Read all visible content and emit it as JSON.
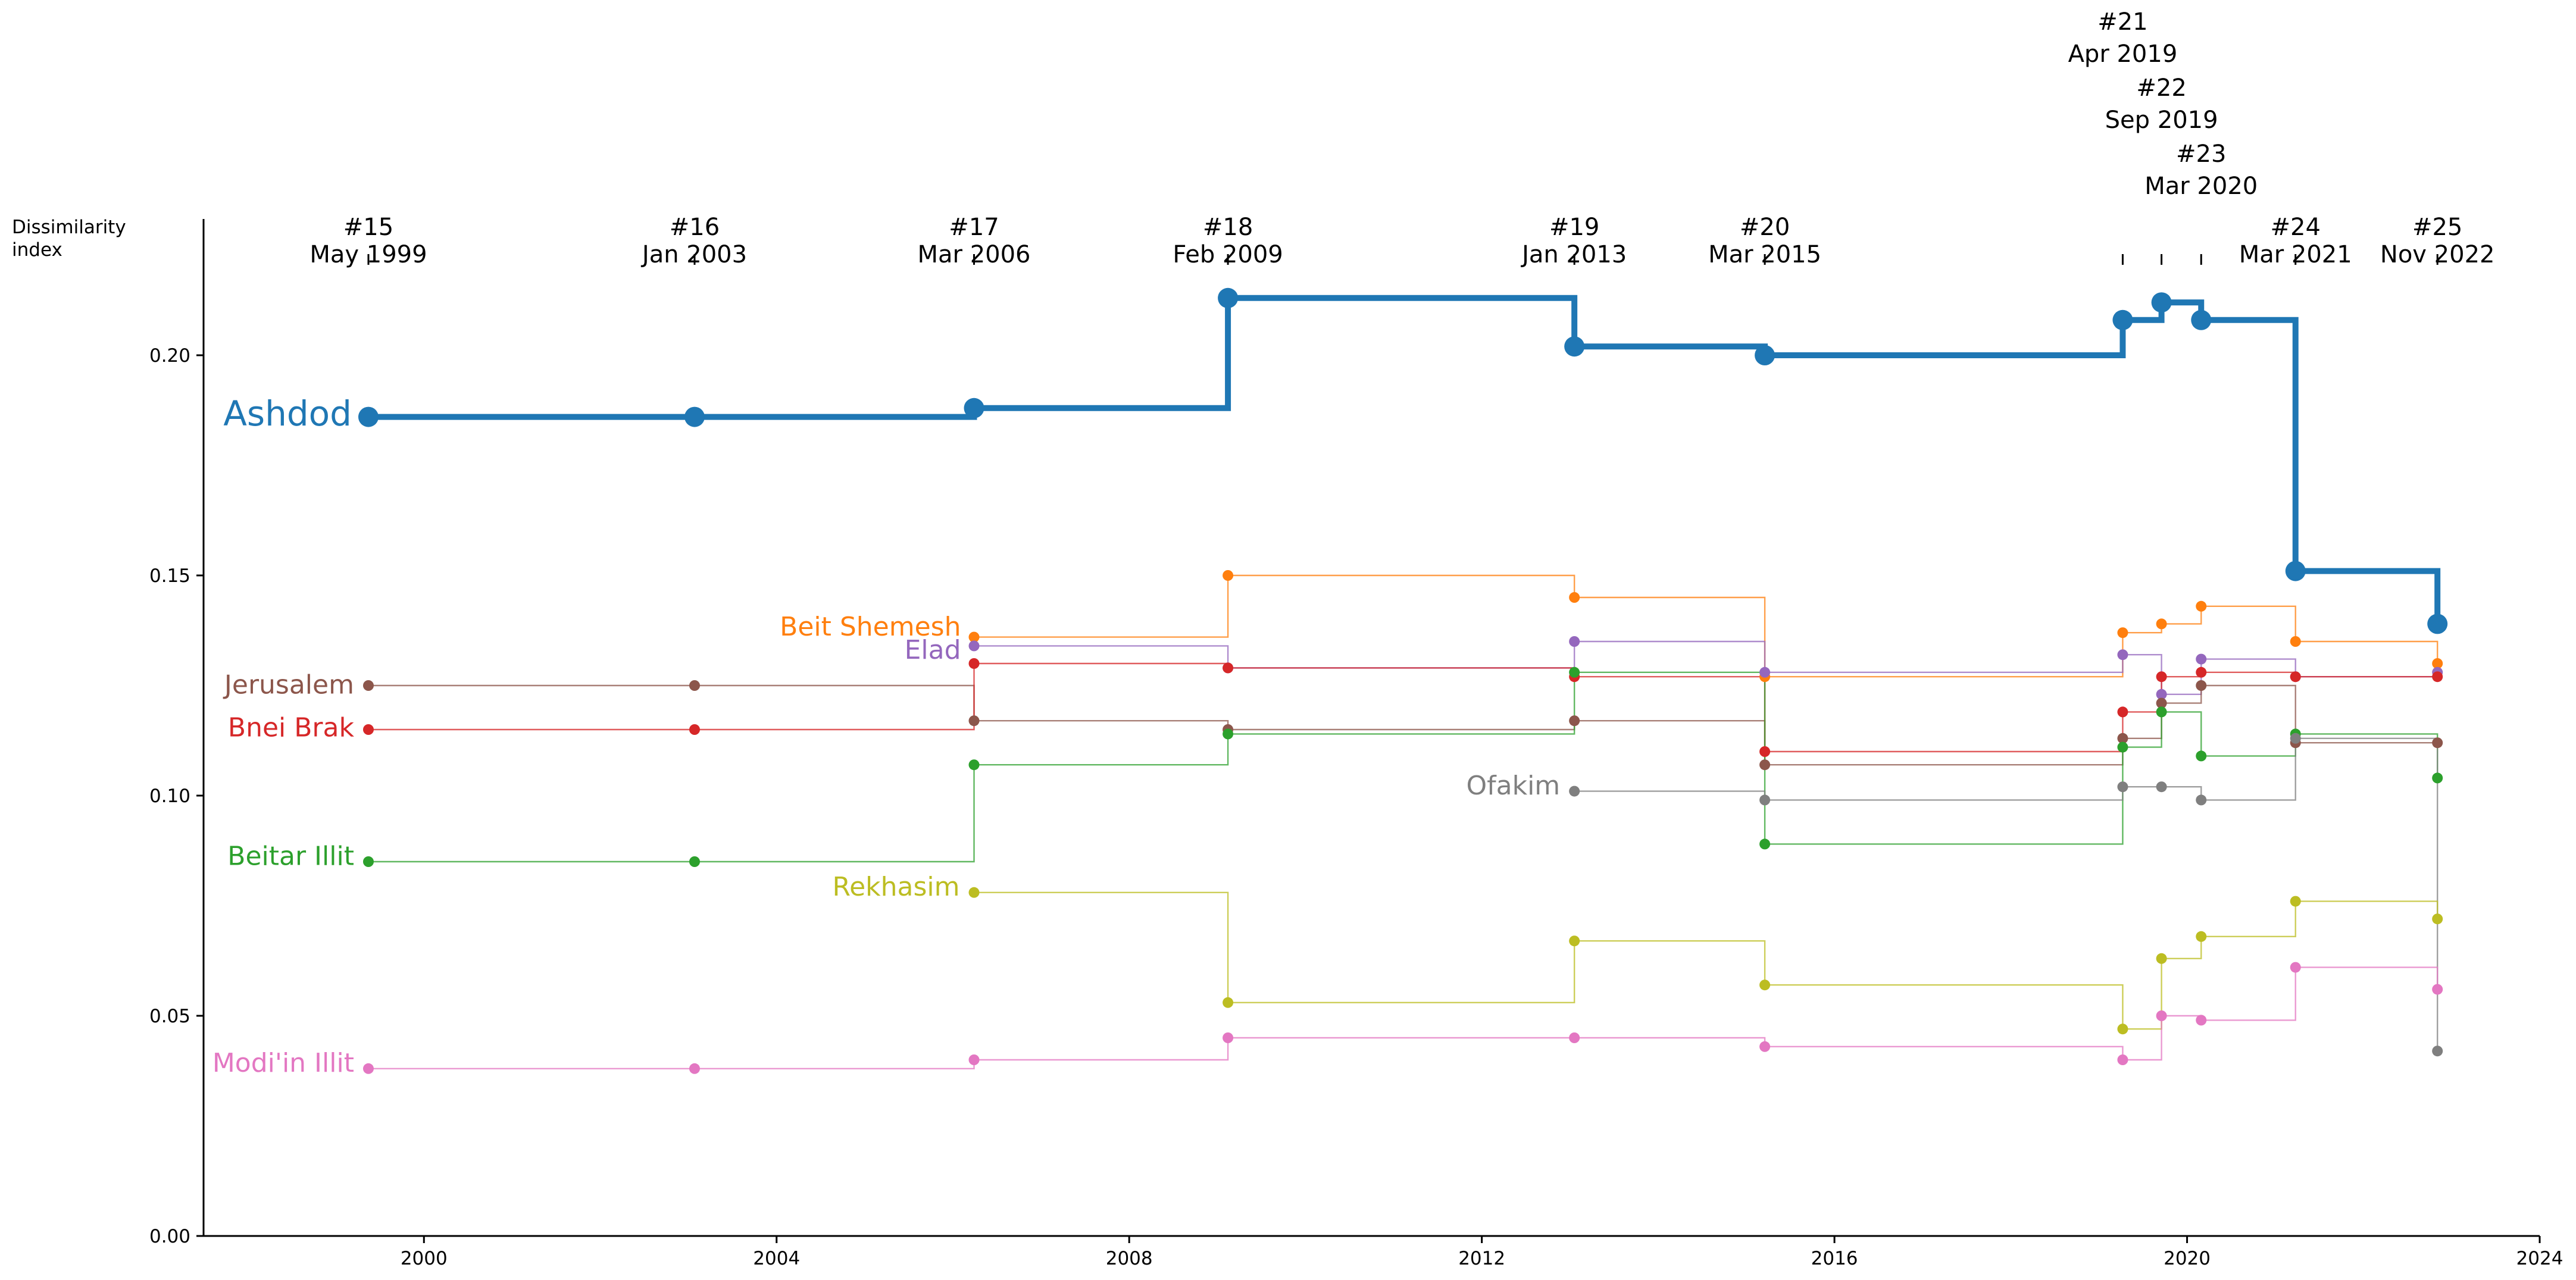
{
  "chart_data": {
    "type": "line",
    "subtype": "step",
    "ylabel_lines": [
      "Dissimilarity",
      "index"
    ],
    "xlim": [
      1997.5,
      2024
    ],
    "ylim": [
      0.0,
      0.23
    ],
    "xticks": [
      2000,
      2004,
      2008,
      2012,
      2016,
      2020,
      2024
    ],
    "xtick_labels": [
      "2000",
      "2004",
      "2008",
      "2012",
      "2016",
      "2020",
      "2024"
    ],
    "yticks": [
      0.0,
      0.05,
      0.1,
      0.15,
      0.2
    ],
    "ytick_labels": [
      "0.00",
      "0.05",
      "0.10",
      "0.15",
      "0.20"
    ],
    "elections": [
      {
        "number": "#15",
        "date": "May 1999",
        "x": 1999.37
      },
      {
        "number": "#16",
        "date": "Jan 2003",
        "x": 2003.07
      },
      {
        "number": "#17",
        "date": "Mar 2006",
        "x": 2006.24
      },
      {
        "number": "#18",
        "date": "Feb 2009",
        "x": 2009.12
      },
      {
        "number": "#19",
        "date": "Jan 2013",
        "x": 2013.05
      },
      {
        "number": "#20",
        "date": "Mar 2015",
        "x": 2015.21
      },
      {
        "number": "#21",
        "date": "Apr 2019",
        "x": 2019.27
      },
      {
        "number": "#22",
        "date": "Sep 2019",
        "x": 2019.71
      },
      {
        "number": "#23",
        "date": "Mar 2020",
        "x": 2020.16
      },
      {
        "number": "#24",
        "date": "Mar 2021",
        "x": 2021.23
      },
      {
        "number": "#25",
        "date": "Nov 2022",
        "x": 2022.84
      }
    ],
    "series": [
      {
        "name": "Ashdod",
        "color": "#1f77b4",
        "highlight": true,
        "points": [
          [
            1999.37,
            0.186
          ],
          [
            2003.07,
            0.186
          ],
          [
            2006.24,
            0.188
          ],
          [
            2009.12,
            0.213
          ],
          [
            2013.05,
            0.202
          ],
          [
            2015.21,
            0.2
          ],
          [
            2019.27,
            0.208
          ],
          [
            2019.71,
            0.212
          ],
          [
            2020.16,
            0.208
          ],
          [
            2021.23,
            0.151
          ],
          [
            2022.84,
            0.139
          ]
        ]
      },
      {
        "name": "Beit Shemesh",
        "color": "#ff7f0e",
        "points": [
          [
            2006.24,
            0.136
          ],
          [
            2009.12,
            0.15
          ],
          [
            2013.05,
            0.145
          ],
          [
            2015.21,
            0.127
          ],
          [
            2019.27,
            0.137
          ],
          [
            2019.71,
            0.139
          ],
          [
            2020.16,
            0.143
          ],
          [
            2021.23,
            0.135
          ],
          [
            2022.84,
            0.13
          ]
        ]
      },
      {
        "name": "Elad",
        "color": "#9467bd",
        "points": [
          [
            2006.24,
            0.134
          ],
          [
            2009.12,
            0.129
          ],
          [
            2013.05,
            0.135
          ],
          [
            2015.21,
            0.128
          ],
          [
            2019.27,
            0.132
          ],
          [
            2019.71,
            0.123
          ],
          [
            2020.16,
            0.131
          ],
          [
            2021.23,
            0.127
          ],
          [
            2022.84,
            0.128
          ]
        ]
      },
      {
        "name": "Jerusalem",
        "color": "#8c564b",
        "points": [
          [
            1999.37,
            0.125
          ],
          [
            2003.07,
            0.125
          ],
          [
            2006.24,
            0.117
          ],
          [
            2009.12,
            0.115
          ],
          [
            2013.05,
            0.117
          ],
          [
            2015.21,
            0.107
          ],
          [
            2019.27,
            0.113
          ],
          [
            2019.71,
            0.121
          ],
          [
            2020.16,
            0.125
          ],
          [
            2021.23,
            0.112
          ],
          [
            2022.84,
            0.112
          ]
        ]
      },
      {
        "name": "Bnei Brak",
        "color": "#d62728",
        "points": [
          [
            1999.37,
            0.115
          ],
          [
            2003.07,
            0.115
          ],
          [
            2006.24,
            0.13
          ],
          [
            2009.12,
            0.129
          ],
          [
            2013.05,
            0.127
          ],
          [
            2015.21,
            0.11
          ],
          [
            2019.27,
            0.119
          ],
          [
            2019.71,
            0.127
          ],
          [
            2020.16,
            0.128
          ],
          [
            2021.23,
            0.127
          ],
          [
            2022.84,
            0.127
          ]
        ]
      },
      {
        "name": "Beitar Illit",
        "color": "#2ca02c",
        "points": [
          [
            1999.37,
            0.085
          ],
          [
            2003.07,
            0.085
          ],
          [
            2006.24,
            0.107
          ],
          [
            2009.12,
            0.114
          ],
          [
            2013.05,
            0.128
          ],
          [
            2015.21,
            0.089
          ],
          [
            2019.27,
            0.111
          ],
          [
            2019.71,
            0.119
          ],
          [
            2020.16,
            0.109
          ],
          [
            2021.23,
            0.114
          ],
          [
            2022.84,
            0.104
          ]
        ]
      },
      {
        "name": "Ofakim",
        "color": "#7f7f7f",
        "points": [
          [
            2013.05,
            0.101
          ],
          [
            2015.21,
            0.099
          ],
          [
            2019.27,
            0.102
          ],
          [
            2019.71,
            0.102
          ],
          [
            2020.16,
            0.099
          ],
          [
            2021.23,
            0.113
          ],
          [
            2022.84,
            0.042
          ]
        ]
      },
      {
        "name": "Rekhasim",
        "color": "#bcbd22",
        "points": [
          [
            2006.24,
            0.078
          ],
          [
            2009.12,
            0.053
          ],
          [
            2013.05,
            0.067
          ],
          [
            2015.21,
            0.057
          ],
          [
            2019.27,
            0.047
          ],
          [
            2019.71,
            0.063
          ],
          [
            2020.16,
            0.068
          ],
          [
            2021.23,
            0.076
          ],
          [
            2022.84,
            0.072
          ]
        ]
      },
      {
        "name": "Modi'in Illit",
        "color": "#e377c2",
        "points": [
          [
            1999.37,
            0.038
          ],
          [
            2003.07,
            0.038
          ],
          [
            2006.24,
            0.04
          ],
          [
            2009.12,
            0.045
          ],
          [
            2013.05,
            0.045
          ],
          [
            2015.21,
            0.043
          ],
          [
            2019.27,
            0.04
          ],
          [
            2019.71,
            0.05
          ],
          [
            2020.16,
            0.049
          ],
          [
            2021.23,
            0.061
          ],
          [
            2022.84,
            0.056
          ]
        ]
      }
    ]
  }
}
